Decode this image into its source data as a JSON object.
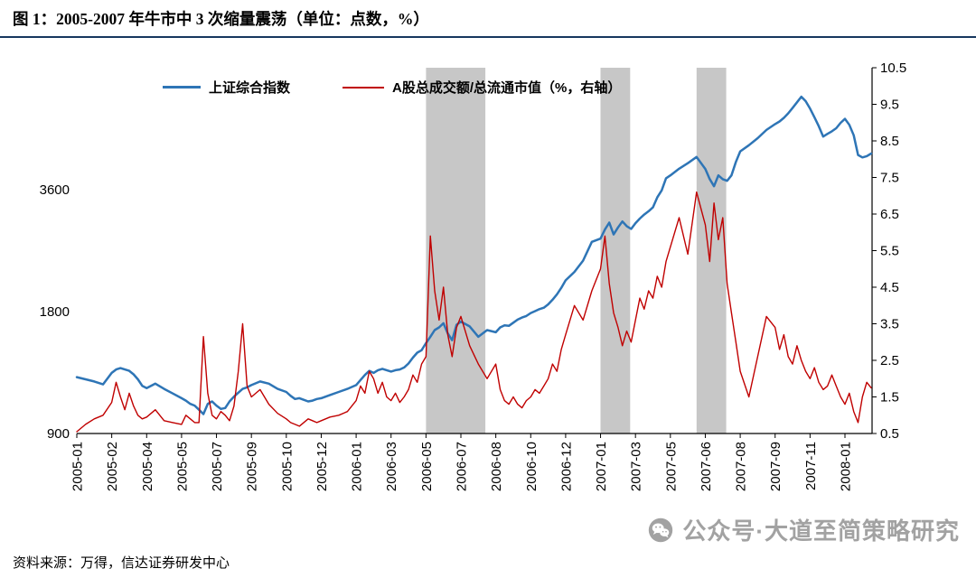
{
  "title": "图 1：2005-2007 年牛市中 3 次缩量震荡（单位：点数，%）",
  "source_note": "资料来源：万得，信达证券研发中心",
  "watermark": {
    "icon": "wechat-icon",
    "text": "公众号·大道至简策略研究"
  },
  "colors": {
    "sse_line": "#2e75b6",
    "turnover_line": "#c00000",
    "shaded_band": "#c7c7c7",
    "title_rule": "#17375e",
    "watermark_gray": "#a2a2a2",
    "axis": "#000000"
  },
  "chart_data": {
    "type": "line",
    "title": "2005-2007 年牛市中 3 次缩量震荡",
    "unit_note": "单位：点数，%",
    "grid": false,
    "legend_position": "top",
    "legend": [
      {
        "name": "上证综合指数",
        "color": "#2e75b6",
        "axis": "left"
      },
      {
        "name": "A股总成交额/总流通市值（%，右轴）",
        "color": "#c00000",
        "axis": "right"
      }
    ],
    "left_axis": {
      "scale": "log",
      "min": 900,
      "max": 7200,
      "ticks": [
        900,
        1800,
        3600
      ]
    },
    "right_axis": {
      "scale": "linear",
      "min": 0.5,
      "max": 10.5,
      "ticks": [
        0.5,
        1.5,
        2.5,
        3.5,
        4.5,
        5.5,
        6.5,
        7.5,
        8.5,
        9.5,
        10.5
      ]
    },
    "x_axis": {
      "labels": [
        "2005-01",
        "2005-02",
        "2005-04",
        "2005-05",
        "2005-07",
        "2005-09",
        "2005-10",
        "2005-12",
        "2006-01",
        "2006-03",
        "2006-05",
        "2006-07",
        "2006-08",
        "2006-10",
        "2006-12",
        "2007-01",
        "2007-03",
        "2007-05",
        "2007-06",
        "2007-08",
        "2007-09",
        "2007-11",
        "2008-01"
      ],
      "label_months": [
        0,
        1,
        3,
        4,
        6,
        8,
        9,
        11,
        12,
        14,
        16,
        18,
        19,
        21,
        23,
        24,
        26,
        28,
        29,
        31,
        32,
        34,
        36
      ],
      "end_month": 37.5
    },
    "shaded_bands": {
      "color": "#c7c7c7",
      "ranges_months": [
        [
          16.0,
          18.7
        ],
        [
          24.0,
          25.7
        ],
        [
          28.75,
          30.2
        ]
      ]
    },
    "series": [
      {
        "name": "上证综合指数",
        "axis": "left",
        "color": "#2e75b6",
        "width": 2.5,
        "start_month": 0,
        "step_month": 0.25,
        "values": [
          1240,
          1225,
          1210,
          1190,
          1270,
          1295,
          1305,
          1295,
          1285,
          1260,
          1225,
          1180,
          1165,
          1195,
          1160,
          1130,
          1100,
          1085,
          1065,
          1055,
          1030,
          1005,
          1065,
          1080,
          1055,
          1035,
          1040,
          1080,
          1110,
          1135,
          1160,
          1170,
          1185,
          1210,
          1195,
          1160,
          1140,
          1115,
          1095,
          1100,
          1090,
          1080,
          1085,
          1095,
          1100,
          1120,
          1140,
          1160,
          1185,
          1220,
          1255,
          1285,
          1270,
          1290,
          1300,
          1290,
          1280,
          1290,
          1295,
          1310,
          1340,
          1385,
          1425,
          1445,
          1505,
          1560,
          1620,
          1645,
          1685,
          1590,
          1530,
          1670,
          1700,
          1655,
          1560,
          1620,
          1600,
          1645,
          1665,
          1660,
          1690,
          1720,
          1740,
          1755,
          1785,
          1805,
          1825,
          1840,
          1875,
          1925,
          1985,
          2060,
          2150,
          2255,
          2405,
          2675,
          2725,
          2870,
          2985,
          2790,
          2905,
          3005,
          2925,
          2880,
          2975,
          3055,
          3125,
          3185,
          3255,
          3445,
          3585,
          3840,
          3905,
          4055,
          4185,
          4335,
          4050,
          3825,
          3670,
          3905,
          3820,
          3785,
          3905,
          4215,
          4475,
          4635,
          4825,
          5055,
          5225,
          5305,
          5415,
          5555,
          5725,
          5915,
          6105,
          5955,
          5705,
          5435,
          5165,
          4870,
          4945,
          5015,
          5105,
          5265,
          5385,
          5205,
          4905,
          4385,
          4325,
          4355,
          4420
        ]
      },
      {
        "name": "A股总成交额/总流通市值（%，右轴）",
        "axis": "right",
        "color": "#c00000",
        "width": 1.4,
        "start_month": 0,
        "step_month": 0.25,
        "values": [
          0.55,
          0.75,
          0.9,
          1.0,
          1.35,
          1.9,
          1.5,
          1.15,
          1.6,
          1.25,
          1.0,
          0.9,
          0.95,
          1.15,
          0.85,
          0.8,
          0.75,
          1.0,
          0.9,
          0.8,
          0.8,
          3.15,
          1.6,
          1.0,
          0.9,
          1.1,
          1.0,
          0.85,
          1.25,
          2.2,
          3.5,
          1.8,
          1.5,
          1.7,
          1.3,
          1.05,
          0.9,
          0.8,
          0.75,
          0.7,
          0.8,
          0.9,
          0.85,
          0.8,
          0.85,
          0.95,
          1.0,
          1.1,
          1.4,
          1.8,
          1.6,
          2.2,
          2.0,
          1.6,
          1.9,
          1.5,
          1.4,
          1.6,
          1.35,
          1.5,
          1.7,
          2.1,
          1.9,
          2.4,
          2.6,
          5.9,
          4.4,
          3.6,
          4.5,
          3.2,
          2.6,
          3.4,
          3.7,
          2.9,
          2.4,
          2.0,
          2.4,
          1.7,
          1.4,
          1.3,
          1.5,
          1.3,
          1.2,
          1.4,
          1.5,
          1.7,
          1.6,
          1.8,
          2.0,
          2.4,
          2.2,
          2.8,
          3.2,
          4.0,
          3.6,
          4.4,
          5.0,
          5.9,
          4.6,
          3.8,
          3.4,
          2.9,
          3.3,
          3.0,
          3.6,
          4.2,
          3.9,
          4.4,
          4.2,
          4.8,
          4.5,
          5.2,
          5.6,
          6.4,
          5.4,
          7.1,
          6.2,
          5.2,
          6.8,
          5.8,
          6.4,
          4.6,
          3.8,
          3.0,
          2.2,
          1.5,
          2.6,
          3.7,
          3.4,
          2.8,
          3.2,
          2.6,
          2.4,
          2.9,
          2.5,
          2.2,
          2.0,
          2.3,
          1.9,
          1.7,
          1.8,
          2.1,
          1.8,
          1.5,
          1.3,
          1.6,
          1.1,
          0.8,
          1.5,
          1.9,
          1.75
        ]
      }
    ]
  }
}
